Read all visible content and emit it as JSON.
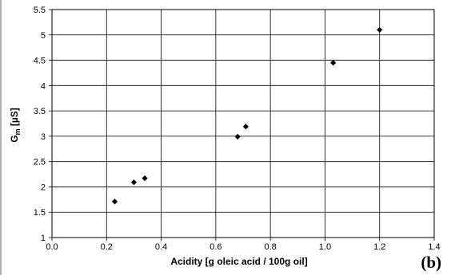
{
  "chart_data": {
    "type": "scatter",
    "title": "",
    "xlabel": "Acidity [g oleic acid / 100g oil]",
    "ylabel_main": "G",
    "ylabel_sub": "m",
    "ylabel_unit": " [µS]",
    "panel_label": "(b)",
    "xlim": [
      0.0,
      1.4
    ],
    "ylim": [
      1,
      5.5
    ],
    "x_ticks": [
      0.0,
      0.2,
      0.4,
      0.6,
      0.8,
      1.0,
      1.2,
      1.4
    ],
    "x_tick_labels": [
      "0.0",
      "0.2",
      "0.4",
      "0.6",
      "0.8",
      "1.0",
      "1.2",
      "1.4"
    ],
    "y_ticks": [
      1,
      1.5,
      2,
      2.5,
      3,
      3.5,
      4,
      4.5,
      5,
      5.5
    ],
    "y_tick_labels": [
      "1",
      "1.5",
      "2",
      "2.5",
      "3",
      "3.5",
      "4",
      "4.5",
      "5",
      "5.5"
    ],
    "grid": true,
    "legend": "none",
    "marker": "diamond",
    "marker_color": "#000000",
    "series": [
      {
        "x": [
          0.23,
          0.3,
          0.34,
          0.68,
          0.71,
          1.03,
          1.2
        ],
        "y": [
          1.71,
          2.09,
          2.17,
          2.99,
          3.19,
          4.45,
          5.1
        ]
      }
    ]
  }
}
